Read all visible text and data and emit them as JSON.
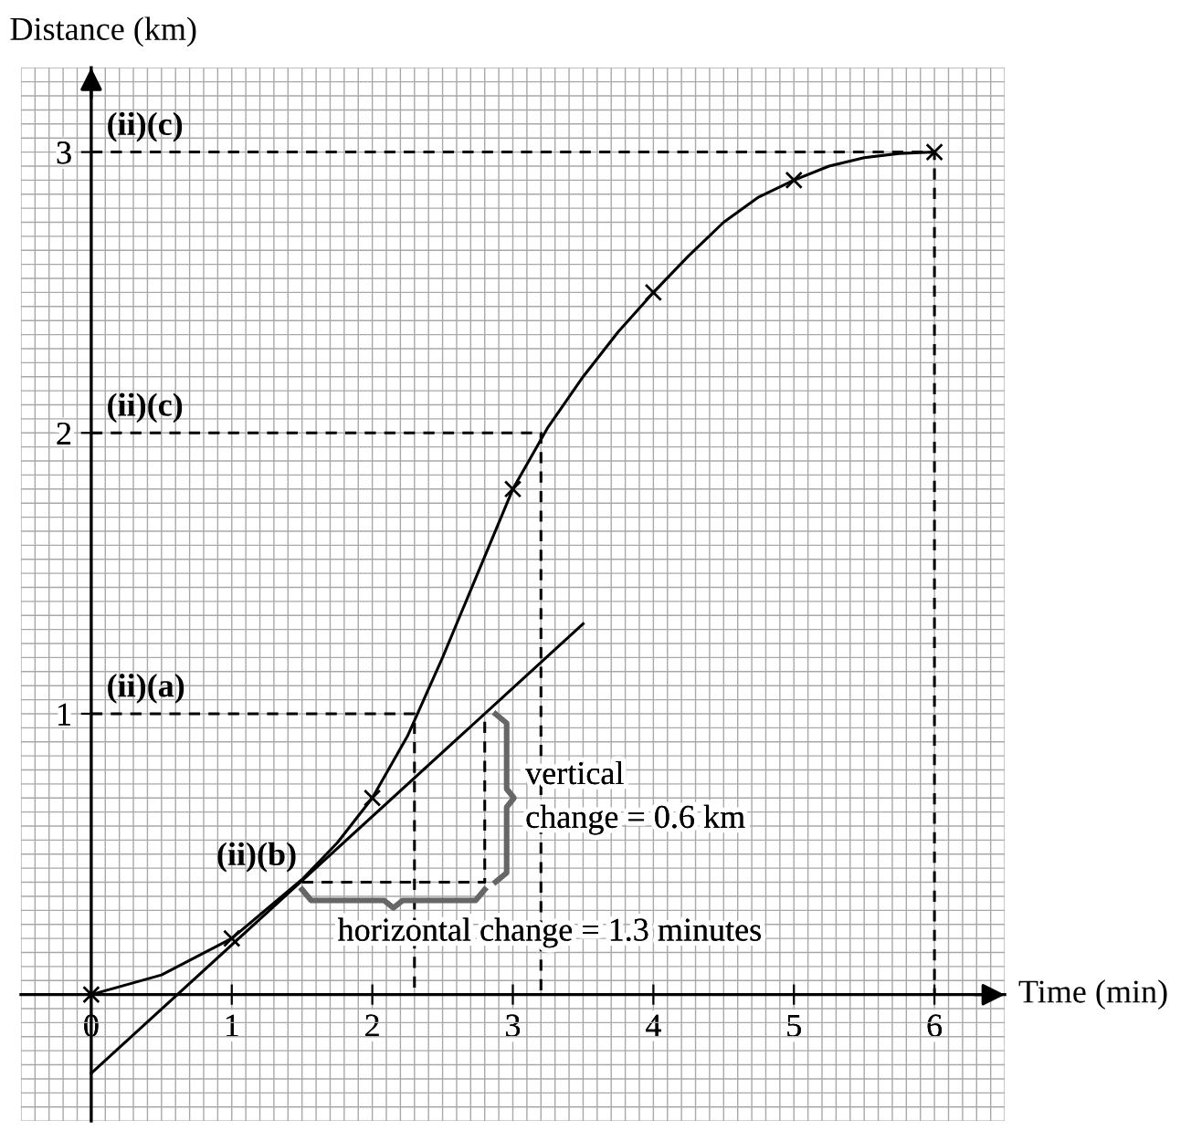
{
  "chart_data": {
    "type": "line",
    "xlabel": "Time (min)",
    "ylabel": "Distance (km)",
    "xlim": [
      -0.5,
      6.5
    ],
    "ylim": [
      -0.45,
      3.3
    ],
    "xticks": [
      0,
      1,
      2,
      3,
      4,
      5,
      6
    ],
    "yticks": [
      1,
      2,
      3
    ],
    "grid": true,
    "series": [
      {
        "x": [
          0,
          0.5,
          1,
          1.5,
          1.75,
          2,
          2.25,
          2.5,
          2.75,
          3,
          3.25,
          3.5,
          3.75,
          4,
          4.25,
          4.5,
          4.75,
          5,
          5.25,
          5.5,
          5.75,
          6
        ],
        "values": [
          0,
          0.07,
          0.2,
          0.41,
          0.54,
          0.7,
          0.92,
          1.2,
          1.5,
          1.8,
          2.02,
          2.2,
          2.36,
          2.5,
          2.63,
          2.75,
          2.84,
          2.9,
          2.95,
          2.98,
          2.995,
          3.0
        ],
        "color": "#000000",
        "marker": "none",
        "line_style": "solid"
      },
      {
        "type": "scatter",
        "x": [
          0,
          1,
          2,
          3,
          4,
          5,
          6
        ],
        "values": [
          0,
          0.2,
          0.7,
          1.8,
          2.5,
          2.9,
          3.0
        ],
        "color": "#000000",
        "marker": "cross"
      },
      {
        "x": [
          0,
          3.5
        ],
        "values": [
          -0.28,
          1.32
        ],
        "color": "#000000",
        "marker": "none",
        "line_style": "solid"
      },
      {
        "x": [
          0,
          6,
          6
        ],
        "values": [
          3,
          3,
          0
        ],
        "color": "#000000",
        "marker": "none",
        "line_style": "dashed"
      },
      {
        "x": [
          0,
          3.2,
          3.2
        ],
        "values": [
          2,
          2,
          0
        ],
        "color": "#000000",
        "marker": "none",
        "line_style": "dashed"
      },
      {
        "x": [
          0,
          2.3,
          2.3
        ],
        "values": [
          1,
          1,
          0
        ],
        "color": "#000000",
        "marker": "none",
        "line_style": "dashed"
      },
      {
        "x": [
          1.5,
          2.8,
          2.8
        ],
        "values": [
          0.4,
          0.4,
          1.0
        ],
        "color": "#000000",
        "marker": "none",
        "line_style": "dashed"
      }
    ],
    "annotations": [
      {
        "text": "(ii)(c)",
        "x": 0,
        "y": 3
      },
      {
        "text": "(ii)(c)",
        "x": 0,
        "y": 2
      },
      {
        "text": "(ii)(a)",
        "x": 0,
        "y": 1
      },
      {
        "text": "(ii)(b)",
        "x": 1.5,
        "y": 0.4
      },
      {
        "text": "vertical\nchange = 0.6 km",
        "x": 2.8,
        "y": 0.7
      },
      {
        "text": "horizontal change = 1.3 minutes",
        "x": 2.15,
        "y": 0.4
      }
    ]
  }
}
